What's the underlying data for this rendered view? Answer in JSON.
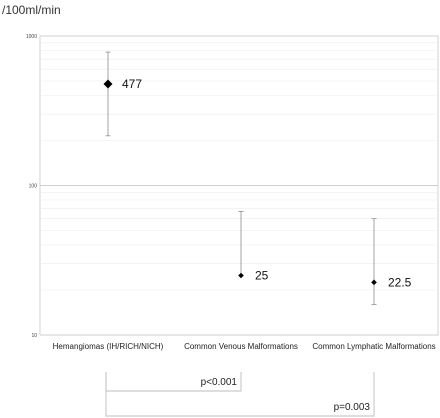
{
  "chart_data": {
    "type": "scatter",
    "title": "",
    "ylabel": "/100ml/min",
    "yscale": "log",
    "ylim": [
      10,
      1000
    ],
    "yticks": [
      "1000",
      "100",
      "10"
    ],
    "grid": true,
    "categories": [
      "Hemangiomas (IH/RICH/NICH)",
      "Common Venous Malformations",
      "Common Lymphatic Malformations"
    ],
    "points": [
      {
        "category": "Hemangiomas (IH/RICH/NICH)",
        "value": 477,
        "label": "477",
        "low": 215,
        "high": 780,
        "marker": "large"
      },
      {
        "category": "Common Venous Malformations",
        "value": 25,
        "label": "25",
        "low": null,
        "high": 67,
        "marker": "small"
      },
      {
        "category": "Common Lymphatic Malformations",
        "value": 22.5,
        "label": "22.5",
        "low": 16,
        "high": 60,
        "marker": "small"
      }
    ],
    "comparisons": [
      {
        "from": 0,
        "to": 1,
        "label": "p<0.001"
      },
      {
        "from": 0,
        "to": 2,
        "label": "p=0.003"
      }
    ]
  }
}
